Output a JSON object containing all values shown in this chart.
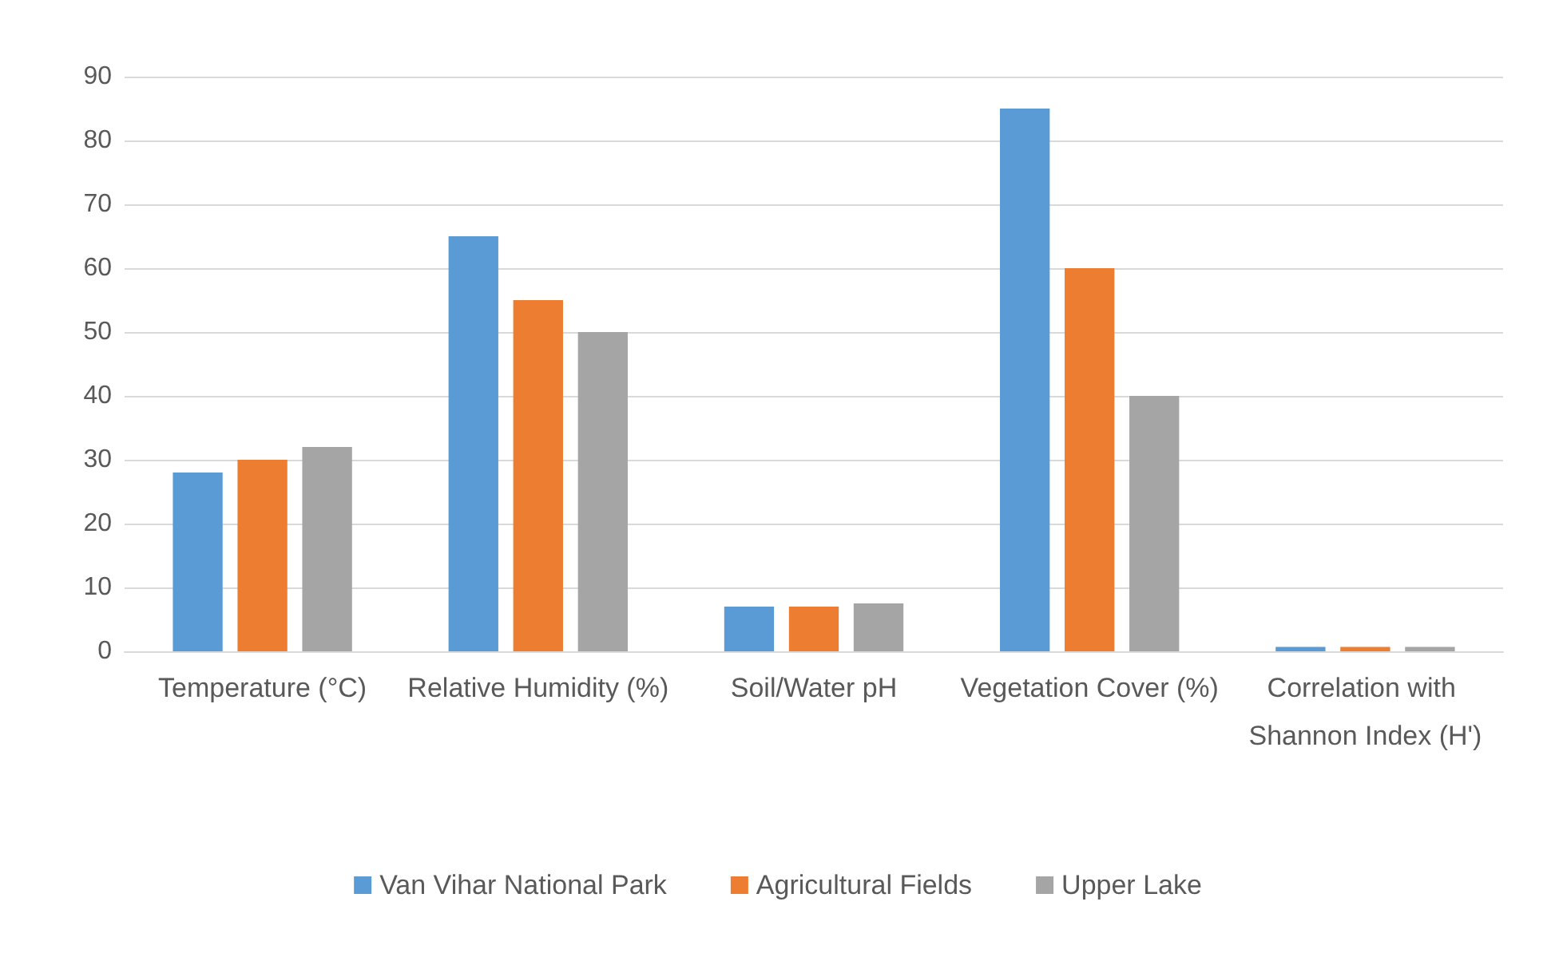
{
  "chart_data": {
    "type": "bar",
    "categories": [
      "Temperature (°C)",
      "Relative Humidity (%)",
      "Soil/Water pH",
      "Vegetation Cover (%)",
      "Correlation with Shannon Index (H')"
    ],
    "series": [
      {
        "name": "Van Vihar National Park",
        "color": "#5b9bd5",
        "values": [
          28,
          65,
          7,
          85,
          0.7
        ]
      },
      {
        "name": "Agricultural Fields",
        "color": "#ed7d31",
        "values": [
          30,
          55,
          7,
          60,
          0.7
        ]
      },
      {
        "name": "Upper Lake",
        "color": "#a5a5a5",
        "values": [
          32,
          50,
          7.5,
          40,
          0.7
        ]
      }
    ],
    "ylim": [
      0,
      90
    ],
    "yticks": [
      0,
      10,
      20,
      30,
      40,
      50,
      60,
      70,
      80,
      90
    ],
    "grid": "y",
    "legend": "bottom"
  }
}
